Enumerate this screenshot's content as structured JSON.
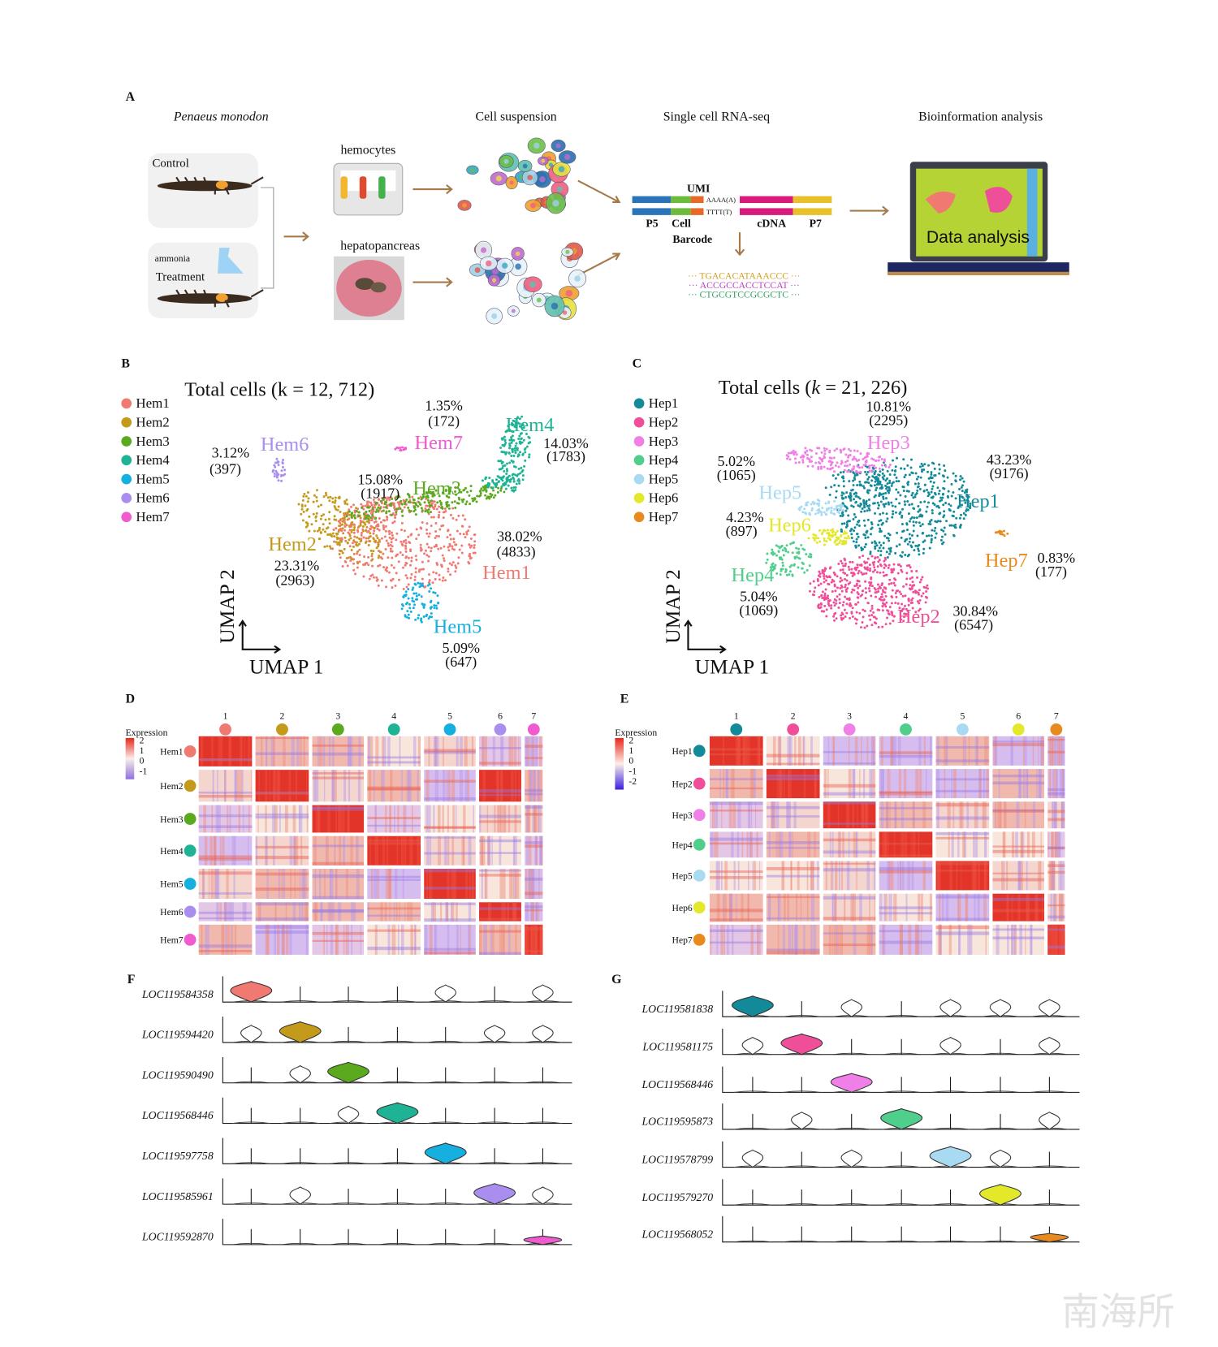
{
  "panel_a": {
    "label": "A",
    "species": "Penaeus monodon",
    "steps": [
      "Cell suspension",
      "Single cell RNA-seq",
      "Bioinformation analysis"
    ],
    "control": "Control",
    "ammonia": "ammonia",
    "treatment": "Treatment",
    "hemocytes": "hemocytes",
    "hepatopancreas": "hepatopancreas",
    "umi": "UMI",
    "poly_a": "AAAA(A)",
    "poly_t": "TTTT(T)",
    "p5": "P5",
    "cell": "Cell",
    "barcode": "Barcode",
    "cdna": "cDNA",
    "p7": "P7",
    "reads": [
      "··· TGACACATAAACCC ···",
      "··· ACCGCCACCTCCAT ···",
      "··· CTGCGTCCGCGCTC ···"
    ],
    "screen_text": "Data analysis"
  },
  "panel_b": {
    "label": "B",
    "title": "Total cells (k = 12, 712)",
    "x_axis": "UMAP 1",
    "y_axis": "UMAP 2",
    "clusters": [
      {
        "name": "Hem1",
        "color": "#f07a72",
        "percent": "38.02%",
        "count": "(4833)"
      },
      {
        "name": "Hem2",
        "color": "#c49a1a",
        "percent": "23.31%",
        "count": "(2963)"
      },
      {
        "name": "Hem3",
        "color": "#5aa91e",
        "percent": "15.08%",
        "count": "(1917)"
      },
      {
        "name": "Hem4",
        "color": "#1db394",
        "percent": "14.03%",
        "count": "(1783)"
      },
      {
        "name": "Hem5",
        "color": "#15b0e0",
        "percent": "5.09%",
        "count": "(647)"
      },
      {
        "name": "Hem6",
        "color": "#a98ef0",
        "percent": "3.12%",
        "count": "(397)"
      },
      {
        "name": "Hem7",
        "color": "#f05bd0",
        "percent": "1.35%",
        "count": "(172)"
      }
    ]
  },
  "panel_c": {
    "label": "C",
    "title_prefix": "Total cells (",
    "title_k": "k",
    "title_suffix": " = 21, 226)",
    "x_axis": "UMAP 1",
    "y_axis": "UMAP 2",
    "clusters": [
      {
        "name": "Hep1",
        "color": "#138a9a",
        "percent": "43.23%",
        "count": "(9176)"
      },
      {
        "name": "Hep2",
        "color": "#ef4f99",
        "percent": "30.84%",
        "count": "(6547)"
      },
      {
        "name": "Hep3",
        "color": "#f07fe8",
        "percent": "10.81%",
        "count": "(2295)"
      },
      {
        "name": "Hep4",
        "color": "#4fcf8b",
        "percent": "5.04%",
        "count": "(1069)"
      },
      {
        "name": "Hep5",
        "color": "#a8dbf2",
        "percent": "5.02%",
        "count": "(1065)"
      },
      {
        "name": "Hep6",
        "color": "#e3e82a",
        "percent": "4.23%",
        "count": "(897)"
      },
      {
        "name": "Hep7",
        "color": "#e88a1e",
        "percent": "0.83%",
        "count": "(177)"
      }
    ]
  },
  "panel_d": {
    "label": "D",
    "legend_title": "Expression",
    "scale_ticks": [
      "2",
      "1",
      "0",
      "-1"
    ],
    "columns": [
      "1",
      "2",
      "3",
      "4",
      "5",
      "6",
      "7"
    ]
  },
  "panel_e": {
    "label": "E",
    "legend_title": "Expression",
    "scale_ticks": [
      "2",
      "1",
      "0",
      "-1",
      "-2"
    ],
    "columns": [
      "1",
      "2",
      "3",
      "4",
      "5",
      "6",
      "7"
    ]
  },
  "panel_f": {
    "label": "F",
    "genes": [
      "LOC119584358",
      "LOC119594420",
      "LOC119590490",
      "LOC119568446",
      "LOC119597758",
      "LOC119585961",
      "LOC119592870"
    ]
  },
  "panel_g": {
    "label": "G",
    "genes": [
      "LOC119581838",
      "LOC119581175",
      "LOC119568446",
      "LOC119595873",
      "LOC119578799",
      "LOC119579270",
      "LOC119568052"
    ]
  },
  "watermark": "南海所"
}
